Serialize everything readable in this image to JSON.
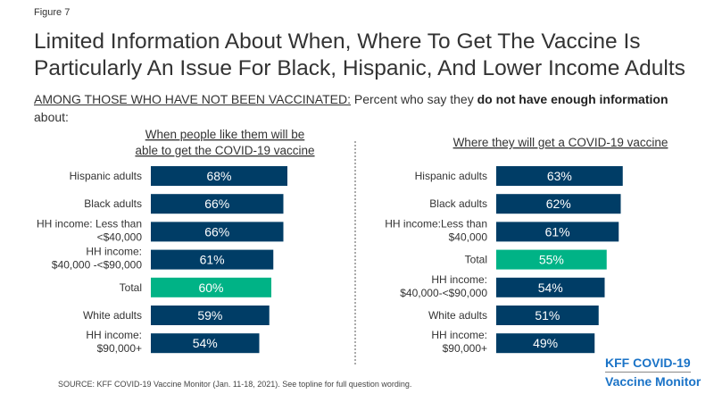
{
  "figure_label": "Figure 7",
  "title": "Limited Information About When, Where To Get The Vaccine Is Particularly An Issue For Black, Hispanic, And Lower Income Adults",
  "subtitle": {
    "prefix": "AMONG THOSE WHO HAVE NOT BEEN VACCINATED:",
    "text1": " Percent who say they ",
    "bold": "do not have enough information",
    "text2": " about:"
  },
  "source": "SOURCE: KFF COVID-19 Vaccine Monitor (Jan. 11-18, 2021). See topline for full question wording.",
  "logo": {
    "line1": "KFF COVID-19",
    "line2": "Vaccine Monitor"
  },
  "colors": {
    "bar": "#003d66",
    "highlight": "#00b386",
    "label": "#ffffff"
  },
  "chart_data": [
    {
      "type": "bar",
      "orientation": "horizontal",
      "title": "When people like them will be able to get the COVID-19 vaccine",
      "categories": [
        "Hispanic adults",
        "Black adults",
        "HH income: Less than <$40,000",
        "HH income: $40,000 -<$90,000",
        "Total",
        "White adults",
        "HH income: $90,000+"
      ],
      "category_lines": [
        [
          "Hispanic adults"
        ],
        [
          "Black adults"
        ],
        [
          "HH income: Less than",
          "<$40,000"
        ],
        [
          "HH income:",
          "$40,000 -<$90,000"
        ],
        [
          "Total"
        ],
        [
          "White adults"
        ],
        [
          "HH income:",
          "$90,000+"
        ]
      ],
      "values": [
        68,
        66,
        66,
        61,
        60,
        59,
        54
      ],
      "labels": [
        "68%",
        "66%",
        "66%",
        "61%",
        "60%",
        "59%",
        "54%"
      ],
      "highlight": "Total",
      "unit": "%"
    },
    {
      "type": "bar",
      "orientation": "horizontal",
      "title": "Where they will get a COVID-19 vaccine",
      "categories": [
        "Hispanic adults",
        "Black adults",
        "HH income:Less than $40,000",
        "Total",
        "HH income: $40,000-<$90,000",
        "White adults",
        "HH income: $90,000+"
      ],
      "category_lines": [
        [
          "Hispanic adults"
        ],
        [
          "Black adults"
        ],
        [
          "HH income:Less than",
          "$40,000"
        ],
        [
          "Total"
        ],
        [
          "HH income:",
          "$40,000-<$90,000"
        ],
        [
          "White adults"
        ],
        [
          "HH income:",
          "$90,000+"
        ]
      ],
      "values": [
        63,
        62,
        61,
        55,
        54,
        51,
        49
      ],
      "labels": [
        "63%",
        "62%",
        "61%",
        "55%",
        "54%",
        "51%",
        "49%"
      ],
      "highlight": "Total",
      "unit": "%"
    }
  ]
}
